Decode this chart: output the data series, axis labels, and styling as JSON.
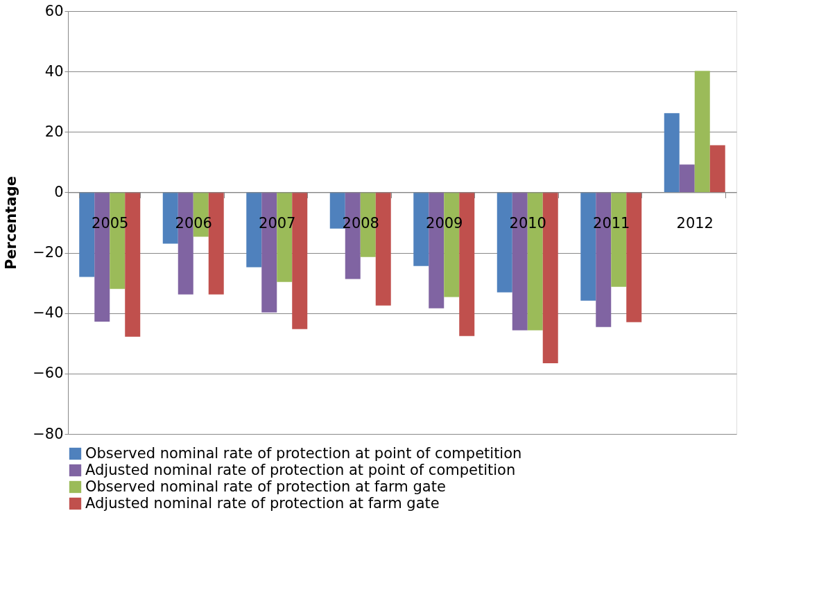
{
  "chart_data": {
    "type": "bar",
    "ylabel": "Percentage",
    "categories": [
      "2005",
      "2006",
      "2007",
      "2008",
      "2009",
      "2010",
      "2011",
      "2012"
    ],
    "series": [
      {
        "name": "Observed nominal rate of protection at point of competition",
        "color": "#4f81bd",
        "values": [
          -28,
          -17,
          -24.8,
          -12,
          -24.4,
          -33.1,
          -35.9,
          26.2
        ]
      },
      {
        "name": "Adjusted nominal rate of protection at point of competition",
        "color": "#8064a2",
        "values": [
          -42.8,
          -33.8,
          -39.8,
          -28.7,
          -38.4,
          -45.7,
          -44.6,
          9.2
        ]
      },
      {
        "name": "Observed nominal rate of protection at farm gate",
        "color": "#9bbb59",
        "values": [
          -32,
          -14.7,
          -29.7,
          -21.4,
          -34.7,
          -45.7,
          -31.3,
          40.2
        ]
      },
      {
        "name": "Adjusted nominal rate of protection at farm gate",
        "color": "#c0504d",
        "values": [
          -47.8,
          -33.8,
          -45.3,
          -37.5,
          -47.6,
          -56.6,
          -43,
          15.6
        ]
      }
    ],
    "ylim": [
      -80,
      60
    ],
    "yticks": [
      -80,
      -60,
      -40,
      -20,
      0,
      20,
      40,
      60
    ],
    "grid": "y",
    "legend": "bottom"
  }
}
